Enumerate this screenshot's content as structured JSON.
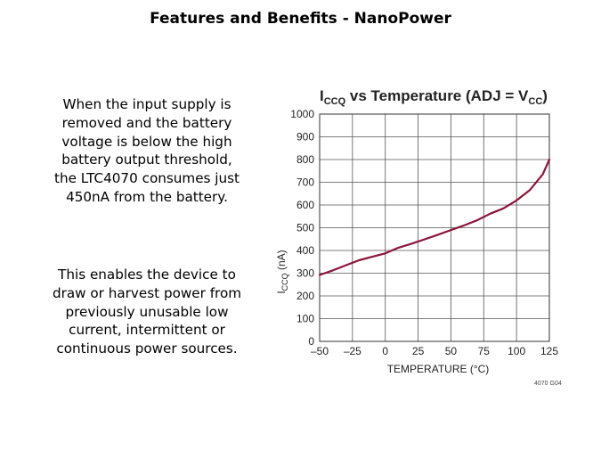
{
  "slide": {
    "title": "Features and Benefits - NanoPower",
    "paragraph1": [
      "When the input supply is",
      "removed and the battery",
      "voltage is below the high",
      "battery output threshold,",
      "the LTC4070 consumes just",
      "450nA from the battery."
    ],
    "paragraph2": [
      "This enables the device to",
      "draw or harvest power from",
      "previously unusable low",
      "current, intermittent or",
      "continuous power sources."
    ]
  },
  "chart_data": {
    "type": "line",
    "title_main": "I",
    "title_main_sub": "CCQ",
    "title_rest": " vs Temperature (ADJ = V",
    "title_rest_sub": "CC",
    "title_end": ")",
    "xlabel": "TEMPERATURE (°C)",
    "ylabel_main": "I",
    "ylabel_sub": "CCQ",
    "ylabel_unit": " (nA)",
    "xlim": [
      -50,
      125
    ],
    "ylim": [
      0,
      1000
    ],
    "xticks": [
      -50,
      -25,
      0,
      25,
      50,
      75,
      100,
      125
    ],
    "yticks": [
      0,
      100,
      200,
      300,
      400,
      500,
      600,
      700,
      800,
      900,
      1000
    ],
    "grid": true,
    "line_color": "#8b1538",
    "figure_code": "4070 G04",
    "series": [
      {
        "x": [
          -50,
          -40,
          -30,
          -20,
          -10,
          0,
          10,
          20,
          30,
          40,
          50,
          60,
          70,
          80,
          90,
          100,
          110,
          120,
          125
        ],
        "y": [
          292,
          312,
          335,
          357,
          372,
          387,
          412,
          430,
          449,
          469,
          490,
          510,
          533,
          562,
          585,
          620,
          665,
          735,
          800
        ]
      }
    ]
  }
}
